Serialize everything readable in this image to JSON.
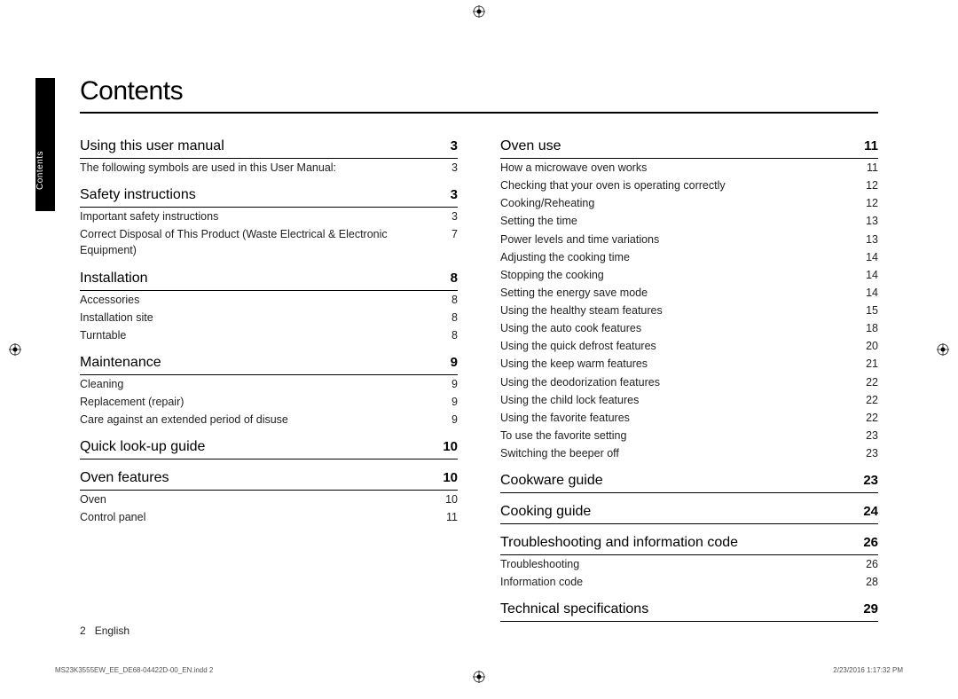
{
  "title": "Contents",
  "sidebar_label": "Contents",
  "footer": {
    "page_number": "2",
    "language": "English",
    "file_info": "MS23K3555EW_EE_DE68-04422D-00_EN.indd   2",
    "timestamp": "2/23/2016   1:17:32 PM"
  },
  "columns": [
    [
      {
        "heading": "Using this user manual",
        "page": "3",
        "note": "The following symbols are used in this User Manual:",
        "note_page": "3",
        "items": []
      },
      {
        "heading": "Safety instructions",
        "page": "3",
        "items": [
          {
            "t": "Important safety instructions",
            "p": "3"
          },
          {
            "t": "Correct Disposal of This Product (Waste Electrical & Electronic Equipment)",
            "p": "7"
          }
        ]
      },
      {
        "heading": "Installation",
        "page": "8",
        "items": [
          {
            "t": "Accessories",
            "p": "8"
          },
          {
            "t": "Installation site",
            "p": "8"
          },
          {
            "t": "Turntable",
            "p": "8"
          }
        ]
      },
      {
        "heading": "Maintenance",
        "page": "9",
        "items": [
          {
            "t": "Cleaning",
            "p": "9"
          },
          {
            "t": "Replacement (repair)",
            "p": "9"
          },
          {
            "t": "Care against an extended period of disuse",
            "p": "9"
          }
        ]
      },
      {
        "heading": "Quick look-up guide",
        "page": "10",
        "items": []
      },
      {
        "heading": "Oven features",
        "page": "10",
        "items": [
          {
            "t": "Oven",
            "p": "10"
          },
          {
            "t": "Control panel",
            "p": "11"
          }
        ]
      }
    ],
    [
      {
        "heading": "Oven use",
        "page": "11",
        "items": [
          {
            "t": "How a microwave oven works",
            "p": "11"
          },
          {
            "t": "Checking that your oven is operating correctly",
            "p": "12"
          },
          {
            "t": "Cooking/Reheating",
            "p": "12"
          },
          {
            "t": "Setting the time",
            "p": "13"
          },
          {
            "t": "Power levels and time variations",
            "p": "13"
          },
          {
            "t": "Adjusting the cooking time",
            "p": "14"
          },
          {
            "t": "Stopping the cooking",
            "p": "14"
          },
          {
            "t": "Setting the energy save mode",
            "p": "14"
          },
          {
            "t": "Using the healthy steam features",
            "p": "15"
          },
          {
            "t": "Using the auto cook features",
            "p": "18"
          },
          {
            "t": "Using the quick defrost features",
            "p": "20"
          },
          {
            "t": "Using the keep warm features",
            "p": "21"
          },
          {
            "t": "Using the deodorization features",
            "p": "22"
          },
          {
            "t": "Using the child lock features",
            "p": "22"
          },
          {
            "t": "Using the favorite features",
            "p": "22"
          },
          {
            "t": "To use the favorite setting",
            "p": "23"
          },
          {
            "t": "Switching the beeper off",
            "p": "23"
          }
        ]
      },
      {
        "heading": "Cookware guide",
        "page": "23",
        "items": []
      },
      {
        "heading": "Cooking guide",
        "page": "24",
        "items": []
      },
      {
        "heading": "Troubleshooting and information code",
        "page": "26",
        "items": [
          {
            "t": "Troubleshooting",
            "p": "26"
          },
          {
            "t": "Information code",
            "p": "28"
          }
        ]
      },
      {
        "heading": "Technical specifications",
        "page": "29",
        "items": []
      }
    ]
  ]
}
